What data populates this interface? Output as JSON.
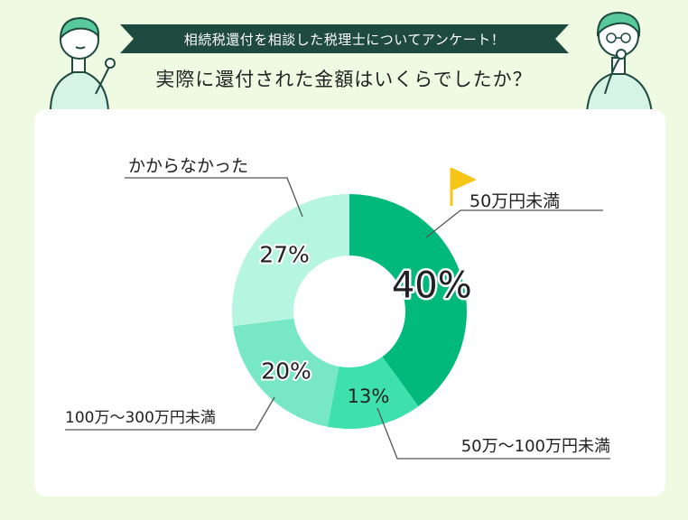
{
  "header": {
    "banner": "相続税還付を相談した税理士についてアンケート！",
    "question": "実際に還付された金額はいくらでしたか？"
  },
  "colors": {
    "background": "#eefbe2",
    "banner": "#1f4a3f",
    "flag": "#f5c518"
  },
  "chart_data": {
    "type": "pie",
    "donut": true,
    "categories": [
      "50万円未満",
      "50万～100万円未満",
      "100万～300万円未満",
      "かからなかった"
    ],
    "values": [
      40,
      13,
      20,
      27
    ],
    "value_labels": [
      "40%",
      "13%",
      "20%",
      "27%"
    ],
    "colors": [
      "#00b97a",
      "#3ee1ab",
      "#78e8c4",
      "#b6f6e0"
    ],
    "highlight": "50万円未満"
  }
}
